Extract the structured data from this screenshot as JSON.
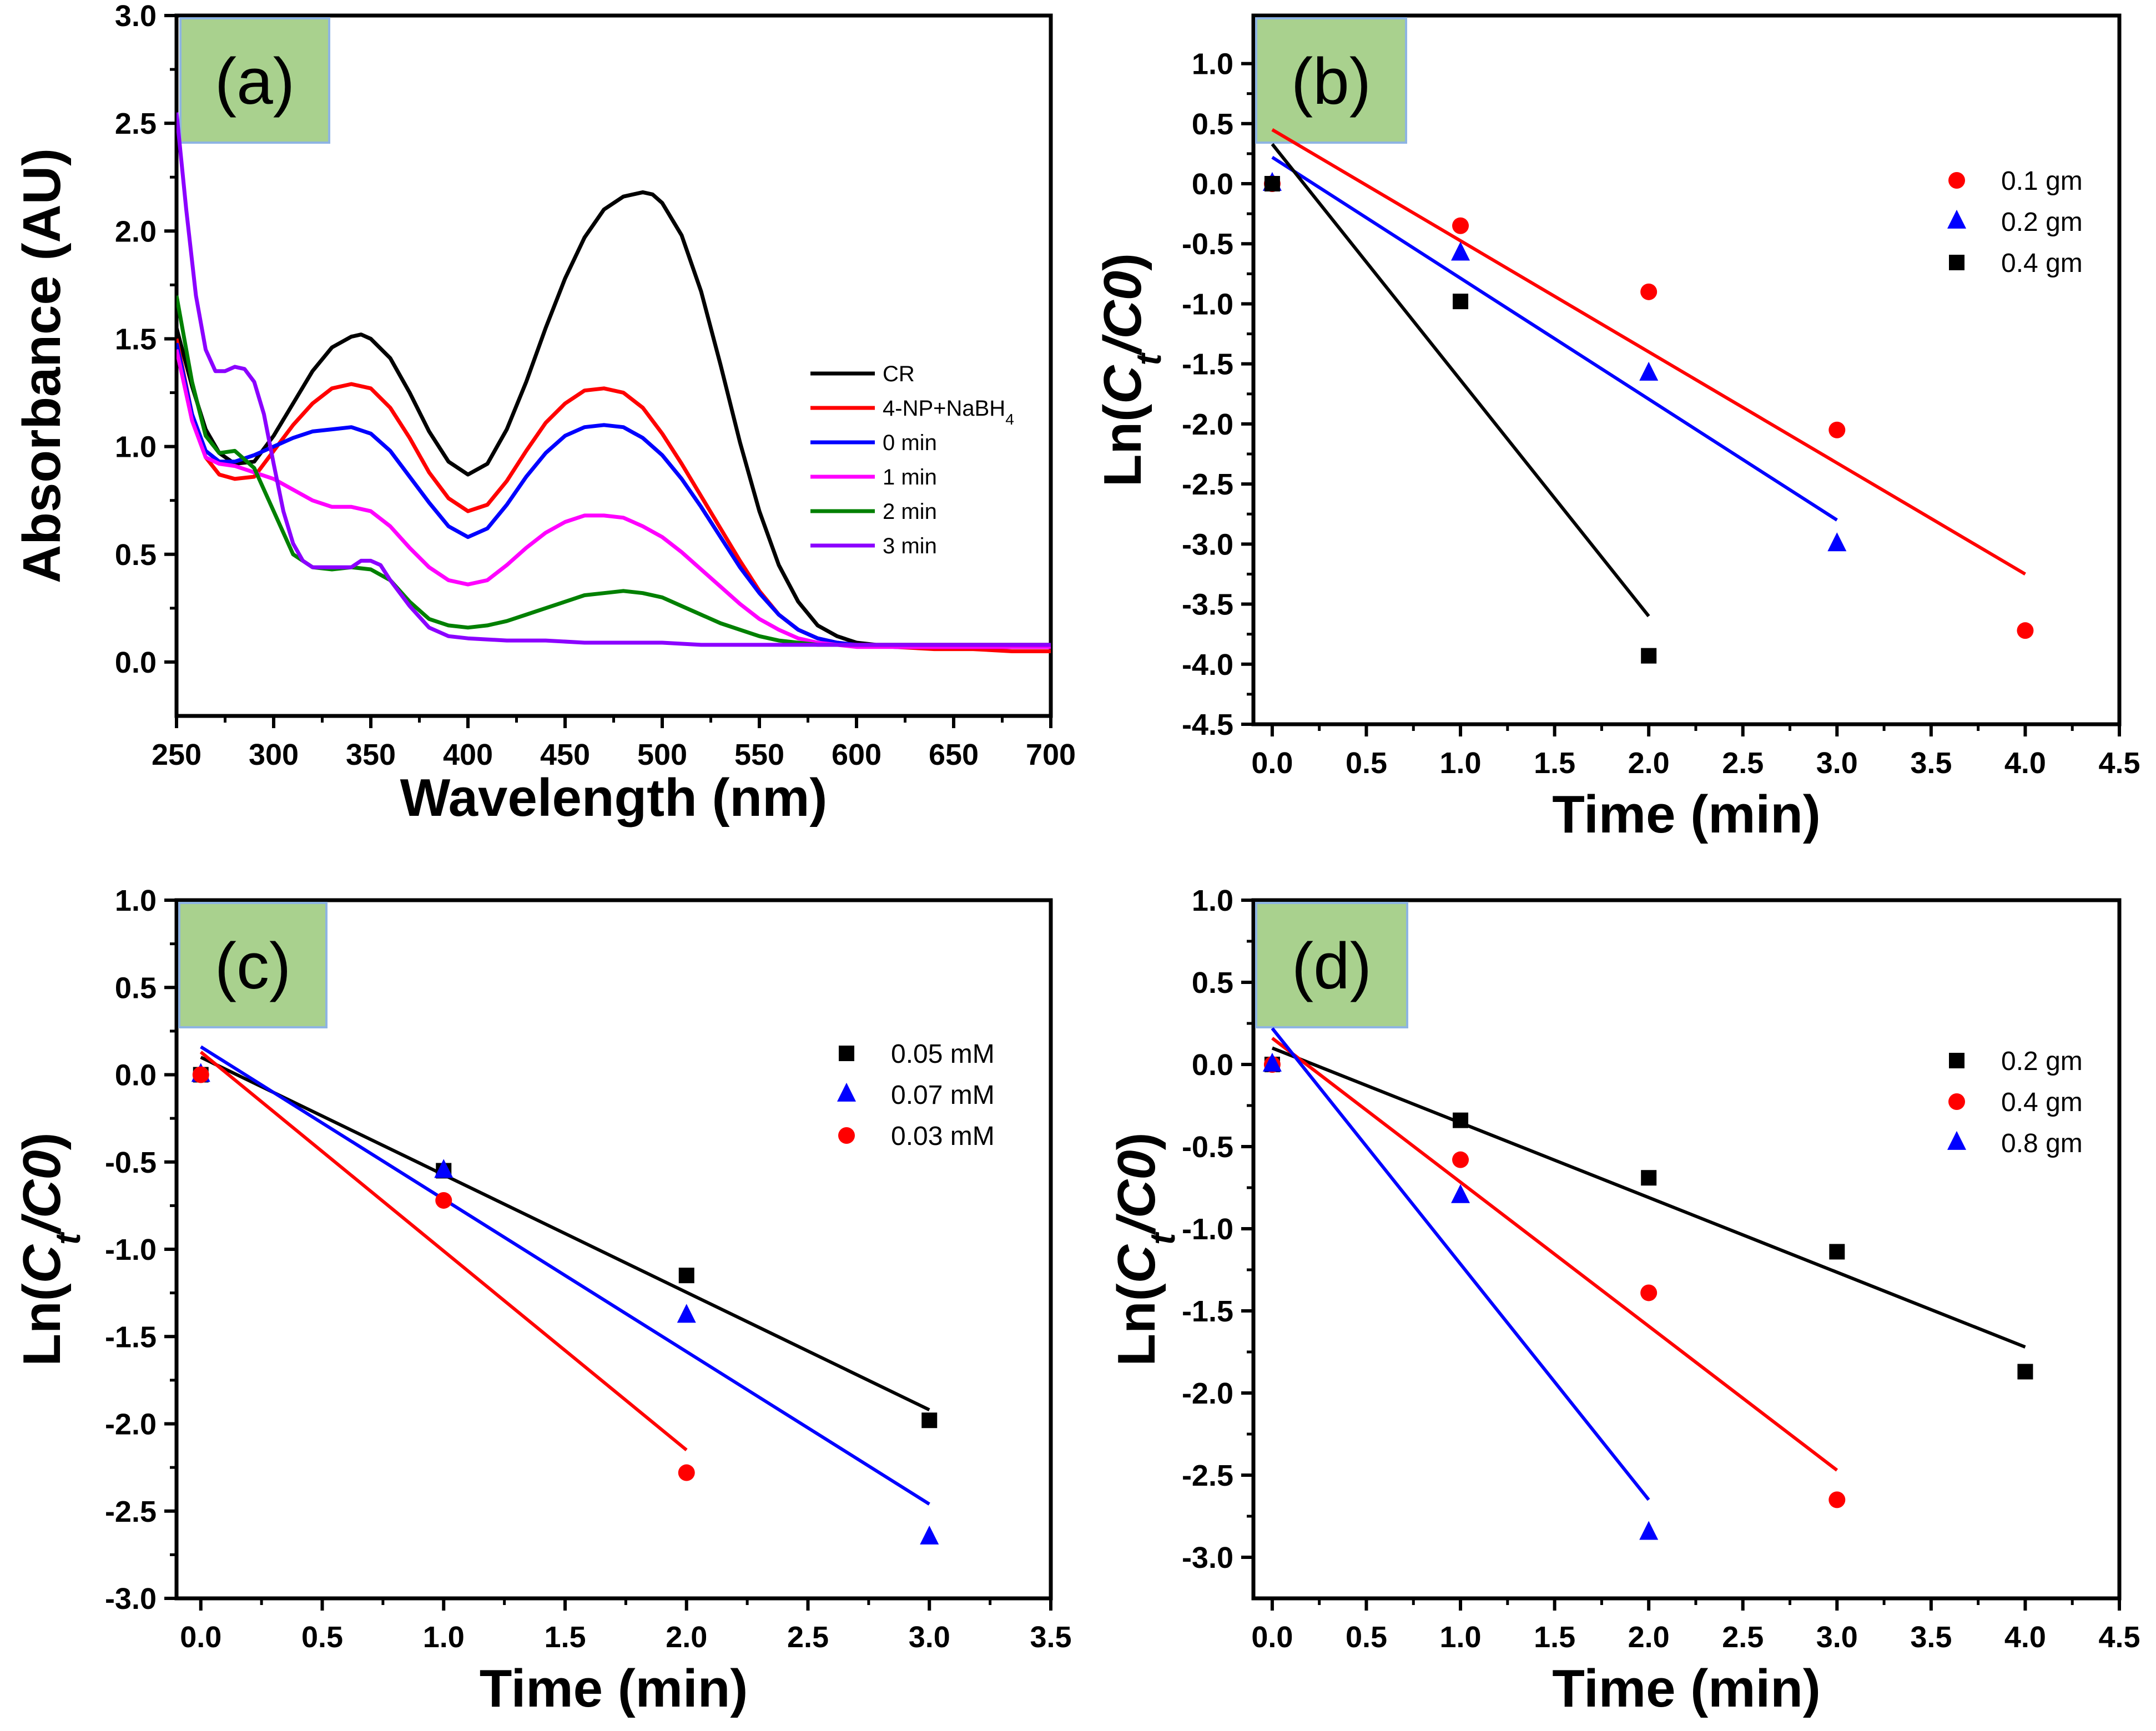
{
  "figure": {
    "panels": [
      {
        "id": "a",
        "label": "(a)",
        "xlabel": "Wavelength (nm)",
        "ylabel": "Absorbance (AU)",
        "legend_labels": [
          "CR",
          "4-NP+NaBH",
          "0 min",
          "1 min",
          "2 min",
          "3 min"
        ],
        "legend_subscript": "4"
      },
      {
        "id": "b",
        "label": "(b)",
        "xlabel": "Time (min)",
        "ylabel_prefix": "Ln(",
        "ylabel_ct": "C",
        "ylabel_ct_sub": "t",
        "ylabel_slash": "/",
        "ylabel_c0": "C0",
        "ylabel_suffix": ")",
        "legend_labels": [
          "0.1 gm",
          "0.2 gm",
          "0.4 gm"
        ]
      },
      {
        "id": "c",
        "label": "(c)",
        "xlabel": "Time (min)",
        "ylabel_prefix": "Ln(",
        "ylabel_ct": "C",
        "ylabel_ct_sub": "t",
        "ylabel_slash": "/",
        "ylabel_c0": "C0",
        "ylabel_suffix": ")",
        "legend_labels": [
          "0.05 mM",
          "0.07 mM",
          "0.03 mM"
        ]
      },
      {
        "id": "d",
        "label": "(d)",
        "xlabel": "Time (min)",
        "ylabel_prefix": "Ln(",
        "ylabel_ct": "C",
        "ylabel_ct_sub": "t",
        "ylabel_slash": "/",
        "ylabel_c0": "C0",
        "ylabel_suffix": ")",
        "legend_labels": [
          "0.2 gm",
          "0.4 gm",
          "0.8 gm"
        ]
      }
    ]
  },
  "chart_data": [
    {
      "type": "line",
      "panel": "a",
      "xlim": [
        250,
        700
      ],
      "ylim": [
        -0.25,
        3.0
      ],
      "xticks": [
        250,
        300,
        350,
        400,
        450,
        500,
        550,
        600,
        650,
        700
      ],
      "xtick_labels": [
        "250",
        "300",
        "350",
        "400",
        "450",
        "500",
        "550",
        "600",
        "650",
        "700"
      ],
      "yticks": [
        0.0,
        0.5,
        1.0,
        1.5,
        2.0,
        2.5,
        3.0
      ],
      "ytick_labels": [
        "0.0",
        "0.5",
        "1.0",
        "1.5",
        "2.0",
        "2.5",
        "3.0"
      ],
      "legend_position": "right",
      "series": [
        {
          "name": "CR",
          "color": "#000000",
          "x": [
            250,
            258,
            265,
            272,
            280,
            290,
            300,
            310,
            320,
            330,
            340,
            345,
            350,
            360,
            370,
            380,
            390,
            400,
            410,
            420,
            430,
            440,
            450,
            460,
            470,
            480,
            490,
            495,
            500,
            510,
            520,
            530,
            540,
            550,
            560,
            570,
            580,
            590,
            600,
            610,
            620,
            640,
            660,
            680,
            700
          ],
          "y": [
            1.55,
            1.28,
            1.08,
            0.97,
            0.92,
            0.93,
            1.05,
            1.2,
            1.35,
            1.46,
            1.51,
            1.52,
            1.5,
            1.41,
            1.25,
            1.07,
            0.93,
            0.87,
            0.92,
            1.08,
            1.3,
            1.55,
            1.78,
            1.97,
            2.1,
            2.16,
            2.18,
            2.17,
            2.13,
            1.98,
            1.72,
            1.38,
            1.02,
            0.7,
            0.45,
            0.28,
            0.17,
            0.12,
            0.09,
            0.08,
            0.08,
            0.08,
            0.08,
            0.08,
            0.08
          ]
        },
        {
          "name": "4-NP+NaBH4",
          "color": "#ff0000",
          "x": [
            250,
            258,
            265,
            272,
            280,
            290,
            300,
            310,
            320,
            330,
            340,
            350,
            360,
            370,
            380,
            390,
            400,
            410,
            420,
            430,
            440,
            450,
            460,
            470,
            480,
            490,
            500,
            510,
            520,
            530,
            540,
            550,
            560,
            570,
            580,
            590,
            600,
            620,
            640,
            660,
            680,
            700
          ],
          "y": [
            1.5,
            1.15,
            0.95,
            0.87,
            0.85,
            0.86,
            0.98,
            1.1,
            1.2,
            1.27,
            1.29,
            1.27,
            1.18,
            1.04,
            0.88,
            0.76,
            0.7,
            0.73,
            0.84,
            0.98,
            1.11,
            1.2,
            1.26,
            1.27,
            1.25,
            1.18,
            1.06,
            0.92,
            0.77,
            0.62,
            0.47,
            0.33,
            0.22,
            0.15,
            0.11,
            0.09,
            0.08,
            0.07,
            0.06,
            0.06,
            0.05,
            0.05
          ]
        },
        {
          "name": "0 min",
          "color": "#0000ff",
          "x": [
            250,
            258,
            265,
            272,
            280,
            290,
            300,
            310,
            320,
            330,
            340,
            350,
            360,
            370,
            380,
            390,
            400,
            410,
            420,
            430,
            440,
            450,
            460,
            470,
            480,
            490,
            500,
            510,
            520,
            530,
            540,
            550,
            560,
            570,
            580,
            590,
            600,
            620,
            640,
            660,
            680,
            700
          ],
          "y": [
            1.48,
            1.15,
            0.98,
            0.93,
            0.93,
            0.96,
            1.0,
            1.04,
            1.07,
            1.08,
            1.09,
            1.06,
            0.98,
            0.86,
            0.74,
            0.63,
            0.58,
            0.62,
            0.73,
            0.86,
            0.97,
            1.05,
            1.09,
            1.1,
            1.09,
            1.04,
            0.96,
            0.85,
            0.72,
            0.58,
            0.44,
            0.32,
            0.22,
            0.15,
            0.11,
            0.09,
            0.08,
            0.07,
            0.07,
            0.07,
            0.07,
            0.07
          ]
        },
        {
          "name": "1 min",
          "color": "#ff00ff",
          "x": [
            250,
            258,
            265,
            272,
            280,
            290,
            300,
            310,
            320,
            330,
            340,
            350,
            360,
            370,
            380,
            390,
            400,
            410,
            420,
            430,
            440,
            450,
            460,
            470,
            480,
            490,
            500,
            510,
            520,
            530,
            540,
            550,
            560,
            570,
            580,
            590,
            600,
            620,
            640,
            660,
            680,
            700
          ],
          "y": [
            1.45,
            1.12,
            0.95,
            0.92,
            0.91,
            0.88,
            0.85,
            0.8,
            0.75,
            0.72,
            0.72,
            0.7,
            0.63,
            0.53,
            0.44,
            0.38,
            0.36,
            0.38,
            0.45,
            0.53,
            0.6,
            0.65,
            0.68,
            0.68,
            0.67,
            0.63,
            0.58,
            0.51,
            0.43,
            0.35,
            0.27,
            0.2,
            0.15,
            0.11,
            0.09,
            0.08,
            0.07,
            0.07,
            0.07,
            0.07,
            0.07,
            0.07
          ]
        },
        {
          "name": "2 min",
          "color": "#008000",
          "x": [
            250,
            258,
            265,
            272,
            280,
            290,
            300,
            310,
            320,
            330,
            340,
            350,
            360,
            370,
            380,
            390,
            400,
            410,
            420,
            430,
            440,
            450,
            460,
            470,
            480,
            490,
            500,
            510,
            520,
            530,
            540,
            550,
            560,
            570,
            580,
            590,
            600,
            620,
            640,
            660,
            680,
            700
          ],
          "y": [
            1.7,
            1.3,
            1.05,
            0.97,
            0.98,
            0.9,
            0.7,
            0.5,
            0.44,
            0.43,
            0.44,
            0.43,
            0.38,
            0.28,
            0.2,
            0.17,
            0.16,
            0.17,
            0.19,
            0.22,
            0.25,
            0.28,
            0.31,
            0.32,
            0.33,
            0.32,
            0.3,
            0.26,
            0.22,
            0.18,
            0.15,
            0.12,
            0.1,
            0.09,
            0.08,
            0.08,
            0.08,
            0.08,
            0.08,
            0.08,
            0.08,
            0.08
          ]
        },
        {
          "name": "3 min",
          "color": "#8b00ff",
          "x": [
            250,
            255,
            260,
            265,
            270,
            275,
            280,
            285,
            290,
            295,
            300,
            305,
            310,
            315,
            320,
            330,
            340,
            345,
            350,
            355,
            360,
            370,
            380,
            390,
            400,
            420,
            440,
            460,
            480,
            500,
            520,
            540,
            560,
            580,
            600,
            620,
            640,
            660,
            680,
            700
          ],
          "y": [
            2.55,
            2.1,
            1.7,
            1.45,
            1.35,
            1.35,
            1.37,
            1.36,
            1.3,
            1.15,
            0.92,
            0.7,
            0.55,
            0.47,
            0.44,
            0.44,
            0.44,
            0.47,
            0.47,
            0.45,
            0.38,
            0.26,
            0.16,
            0.12,
            0.11,
            0.1,
            0.1,
            0.09,
            0.09,
            0.09,
            0.08,
            0.08,
            0.08,
            0.08,
            0.08,
            0.08,
            0.08,
            0.08,
            0.08,
            0.08
          ]
        }
      ]
    },
    {
      "type": "scatter",
      "panel": "b",
      "xlim": [
        -0.1,
        4.5
      ],
      "ylim": [
        -4.5,
        1.4
      ],
      "xticks": [
        0.0,
        0.5,
        1.0,
        1.5,
        2.0,
        2.5,
        3.0,
        3.5,
        4.0,
        4.5
      ],
      "xtick_labels": [
        "0.0",
        "0.5",
        "1.0",
        "1.5",
        "2.0",
        "2.5",
        "3.0",
        "3.5",
        "4.0",
        "4.5"
      ],
      "yticks": [
        1.0,
        0.5,
        0.0,
        -0.5,
        -1.0,
        -1.5,
        -2.0,
        -2.5,
        -3.0,
        -3.5,
        -4.0,
        -4.5
      ],
      "ytick_labels": [
        "1.0",
        "0.5",
        "0.0",
        "-0.5",
        "-1.0",
        "-1.5",
        "-2.0",
        "-2.5",
        "-3.0",
        "-3.5",
        "-4.0",
        "-4.5"
      ],
      "legend_position": "top-right",
      "series": [
        {
          "name": "0.1 gm",
          "color": "#ff0000",
          "marker": "circle",
          "x": [
            0,
            1,
            2,
            3,
            4
          ],
          "y": [
            0.0,
            -0.35,
            -0.9,
            -2.05,
            -3.72
          ],
          "fit": [
            [
              0,
              0.45
            ],
            [
              4,
              -3.25
            ]
          ]
        },
        {
          "name": "0.2 gm",
          "color": "#0000ff",
          "marker": "triangle",
          "x": [
            0,
            1,
            2,
            3
          ],
          "y": [
            0.0,
            -0.58,
            -1.58,
            -3.0
          ],
          "fit": [
            [
              0,
              0.22
            ],
            [
              3,
              -2.8
            ]
          ]
        },
        {
          "name": "0.4 gm",
          "color": "#000000",
          "marker": "square",
          "x": [
            0,
            1,
            2
          ],
          "y": [
            0.0,
            -0.98,
            -3.93
          ],
          "fit": [
            [
              0,
              0.33
            ],
            [
              2,
              -3.6
            ]
          ]
        }
      ]
    },
    {
      "type": "scatter",
      "panel": "c",
      "xlim": [
        -0.1,
        3.5
      ],
      "ylim": [
        -3.0,
        1.0
      ],
      "xticks": [
        0.0,
        0.5,
        1.0,
        1.5,
        2.0,
        2.5,
        3.0,
        3.5
      ],
      "xtick_labels": [
        "0.0",
        "0.5",
        "1.0",
        "1.5",
        "2.0",
        "2.5",
        "3.0",
        "3.5"
      ],
      "yticks": [
        1.0,
        0.5,
        0.0,
        -0.5,
        -1.0,
        -1.5,
        -2.0,
        -2.5,
        -3.0
      ],
      "ytick_labels": [
        "1.0",
        "0.5",
        "0.0",
        "-0.5",
        "-1.0",
        "-1.5",
        "-2.0",
        "-2.5",
        "-3.0"
      ],
      "legend_position": "top-right",
      "series": [
        {
          "name": "0.05 mM",
          "color": "#000000",
          "marker": "square",
          "x": [
            0,
            1,
            2,
            3
          ],
          "y": [
            0.0,
            -0.55,
            -1.15,
            -1.98
          ],
          "fit": [
            [
              0,
              0.1
            ],
            [
              3,
              -1.92
            ]
          ]
        },
        {
          "name": "0.07 mM",
          "color": "#0000ff",
          "marker": "triangle",
          "x": [
            0,
            1,
            2,
            3
          ],
          "y": [
            0.0,
            -0.55,
            -1.38,
            -2.65
          ],
          "fit": [
            [
              0,
              0.16
            ],
            [
              3,
              -2.46
            ]
          ]
        },
        {
          "name": "0.03 mM",
          "color": "#ff0000",
          "marker": "circle",
          "x": [
            0,
            1,
            2
          ],
          "y": [
            0.0,
            -0.72,
            -2.28
          ],
          "fit": [
            [
              0,
              0.13
            ],
            [
              2,
              -2.15
            ]
          ]
        }
      ]
    },
    {
      "type": "scatter",
      "panel": "d",
      "xlim": [
        -0.1,
        4.5
      ],
      "ylim": [
        -3.25,
        1.0
      ],
      "xticks": [
        0.0,
        0.5,
        1.0,
        1.5,
        2.0,
        2.5,
        3.0,
        3.5,
        4.0,
        4.5
      ],
      "xtick_labels": [
        "0.0",
        "0.5",
        "1.0",
        "1.5",
        "2.0",
        "2.5",
        "3.0",
        "3.5",
        "4.0",
        "4.5"
      ],
      "yticks": [
        1.0,
        0.5,
        0.0,
        -0.5,
        -1.0,
        -1.5,
        -2.0,
        -2.5,
        -3.0
      ],
      "ytick_labels": [
        "1.0",
        "0.5",
        "0.0",
        "-0.5",
        "-1.0",
        "-1.5",
        "-2.0",
        "-2.5",
        "-3.0"
      ],
      "legend_position": "top-right",
      "series": [
        {
          "name": "0.2 gm",
          "color": "#000000",
          "marker": "square",
          "x": [
            0,
            1,
            2,
            3,
            4
          ],
          "y": [
            0.0,
            -0.34,
            -0.69,
            -1.14,
            -1.87
          ],
          "fit": [
            [
              0,
              0.1
            ],
            [
              4,
              -1.72
            ]
          ]
        },
        {
          "name": "0.4 gm",
          "color": "#ff0000",
          "marker": "circle",
          "x": [
            0,
            1,
            2,
            3
          ],
          "y": [
            0.0,
            -0.58,
            -1.39,
            -2.65
          ],
          "fit": [
            [
              0,
              0.16
            ],
            [
              3,
              -2.47
            ]
          ]
        },
        {
          "name": "0.8 gm",
          "color": "#0000ff",
          "marker": "triangle",
          "x": [
            0,
            1,
            2
          ],
          "y": [
            0.0,
            -0.8,
            -2.85
          ],
          "fit": [
            [
              0,
              0.22
            ],
            [
              2,
              -2.65
            ]
          ]
        }
      ]
    }
  ]
}
